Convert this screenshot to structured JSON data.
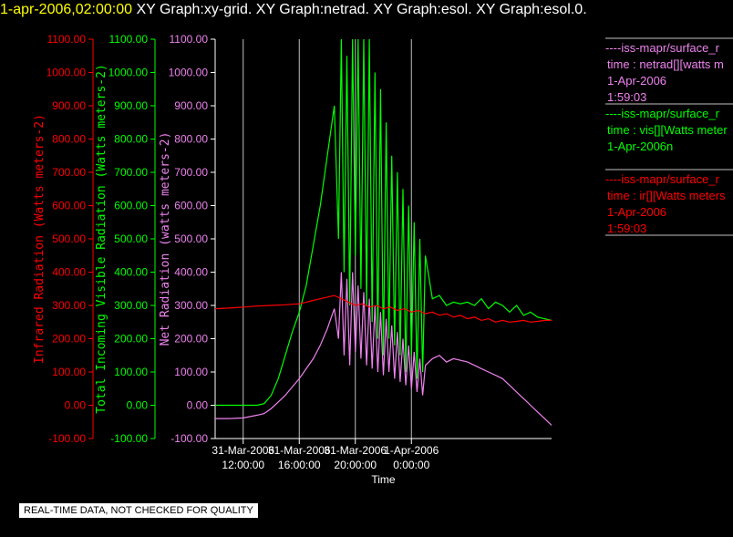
{
  "header": {
    "time_label": "1-apr-2006,02:00:00",
    "graphs_label": "XY Graph:xy-grid.  XY Graph:netrad.  XY Graph:esol.  XY Graph:esol.0."
  },
  "notice": "REAL-TIME DATA, NOT CHECKED FOR QUALITY",
  "colors": {
    "ir": "#ff0000",
    "vis": "#00ff00",
    "net": "#ee82ee",
    "axis": "#ffffff",
    "grid": "#c0c0c0"
  },
  "chart_data": {
    "type": "line",
    "ylim": [
      -100,
      1100
    ],
    "y_ticks": [
      "1100.00",
      "1000.00",
      "900.00",
      "800.00",
      "700.00",
      "600.00",
      "500.00",
      "400.00",
      "300.00",
      "200.00",
      "100.00",
      "0.00",
      "-100.00"
    ],
    "y_tick_values": [
      1100,
      1000,
      900,
      800,
      700,
      600,
      500,
      400,
      300,
      200,
      100,
      0,
      -100
    ],
    "y_axes": [
      {
        "name": "ir",
        "label": "Infrared Radiation (Watts meters-2)"
      },
      {
        "name": "vis",
        "label": "Total Incoming Visible Radiation (Watts meters-2)"
      },
      {
        "name": "net",
        "label": "Net Radiation (watts meters-2)"
      }
    ],
    "xlabel": "Time",
    "xlim": [
      10.0,
      34.0
    ],
    "x_ticks": [
      {
        "value": 12,
        "line1": "31-Mar-2006",
        "line2": "12:00:00"
      },
      {
        "value": 16,
        "line1": "31-Mar-2006",
        "line2": "16:00:00"
      },
      {
        "value": 20,
        "line1": "31-Mar-2006",
        "line2": "20:00:00"
      },
      {
        "value": 24,
        "line1": "1-Apr-2006",
        "line2": "0:00:00"
      }
    ],
    "series": [
      {
        "key": "vis",
        "x": [
          10.0,
          11.0,
          12.0,
          13.0,
          13.5,
          14.0,
          14.5,
          15.0,
          15.5,
          16.0,
          16.5,
          17.0,
          17.5,
          18.0,
          18.5,
          18.8,
          19.0,
          19.2,
          19.4,
          19.6,
          19.8,
          20.0,
          20.2,
          20.4,
          20.6,
          20.8,
          21.0,
          21.2,
          21.4,
          21.6,
          21.8,
          22.0,
          22.2,
          22.4,
          22.6,
          22.8,
          23.0,
          23.2,
          23.4,
          23.6,
          23.8,
          24.0,
          24.2,
          24.4,
          24.6,
          24.8,
          25.0,
          25.5,
          26.0,
          26.5,
          27.0,
          27.5,
          28.0,
          28.5,
          29.0,
          29.5,
          30.0,
          30.5,
          31.0,
          31.5,
          32.0,
          32.5,
          33.0,
          33.5,
          34.0
        ],
        "y": [
          0,
          0,
          0,
          0,
          5,
          30,
          80,
          150,
          220,
          280,
          360,
          480,
          600,
          750,
          900,
          500,
          1100,
          400,
          1050,
          300,
          1100,
          450,
          1100,
          350,
          1100,
          300,
          1100,
          250,
          1000,
          200,
          950,
          150,
          850,
          200,
          750,
          180,
          700,
          150,
          650,
          100,
          600,
          150,
          550,
          80,
          500,
          100,
          450,
          320,
          330,
          300,
          310,
          305,
          310,
          300,
          320,
          290,
          310,
          300,
          280,
          300,
          270,
          280,
          265,
          260,
          255
        ]
      },
      {
        "key": "net",
        "x": [
          10.0,
          11.0,
          12.0,
          13.0,
          13.5,
          14.0,
          14.5,
          15.0,
          15.5,
          16.0,
          16.5,
          17.0,
          17.5,
          18.0,
          18.5,
          18.8,
          19.0,
          19.2,
          19.4,
          19.6,
          19.8,
          20.0,
          20.2,
          20.4,
          20.6,
          20.8,
          21.0,
          21.2,
          21.4,
          21.6,
          21.8,
          22.0,
          22.2,
          22.4,
          22.6,
          22.8,
          23.0,
          23.2,
          23.4,
          23.6,
          23.8,
          24.0,
          24.2,
          24.4,
          24.6,
          24.8,
          25.0,
          25.5,
          26.0,
          26.5,
          27.0,
          27.5,
          28.0,
          28.5,
          29.0,
          29.5,
          30.0,
          30.5,
          31.0,
          31.5,
          32.0,
          32.5,
          33.0,
          33.5,
          34.0
        ],
        "y": [
          -40,
          -40,
          -38,
          -30,
          -25,
          -10,
          10,
          30,
          55,
          80,
          110,
          140,
          180,
          230,
          290,
          200,
          400,
          150,
          380,
          120,
          400,
          160,
          360,
          140,
          340,
          120,
          320,
          110,
          300,
          100,
          280,
          90,
          260,
          100,
          240,
          80,
          220,
          70,
          200,
          60,
          180,
          50,
          160,
          40,
          140,
          30,
          120,
          140,
          150,
          130,
          140,
          135,
          130,
          120,
          110,
          100,
          90,
          80,
          60,
          40,
          20,
          0,
          -20,
          -40,
          -60
        ]
      },
      {
        "key": "ir",
        "x": [
          10.0,
          11.0,
          12.0,
          13.0,
          14.0,
          15.0,
          16.0,
          16.5,
          17.0,
          17.5,
          18.0,
          18.5,
          19.0,
          19.5,
          20.0,
          20.5,
          21.0,
          21.5,
          22.0,
          22.5,
          23.0,
          23.5,
          24.0,
          24.5,
          25.0,
          25.5,
          26.0,
          26.5,
          27.0,
          27.5,
          28.0,
          28.5,
          29.0,
          29.5,
          30.0,
          30.5,
          31.0,
          31.5,
          32.0,
          32.5,
          33.0,
          33.5,
          34.0
        ],
        "y": [
          290,
          292,
          295,
          298,
          300,
          302,
          305,
          310,
          315,
          320,
          325,
          330,
          320,
          310,
          300,
          305,
          295,
          300,
          290,
          295,
          285,
          290,
          280,
          285,
          275,
          280,
          270,
          275,
          265,
          270,
          260,
          265,
          255,
          260,
          250,
          255,
          250,
          252,
          255,
          250,
          252,
          255,
          255
        ]
      }
    ],
    "legend": [
      {
        "key": "net",
        "line1": "----iss-mapr/surface_r",
        "line2": "time : netrad[][watts m",
        "line3": "1-Apr-2006",
        "line4": "1:59:03"
      },
      {
        "key": "vis",
        "line1": "----iss-mapr/surface_r",
        "line2": "time : vis[][Watts meter",
        "line3": "1-Apr-2006n",
        "line4": ""
      },
      {
        "key": "ir",
        "line1": "----iss-mapr/surface_r",
        "line2": "time : ir[][Watts meters",
        "line3": "1-Apr-2006",
        "line4": "1:59:03"
      }
    ],
    "legend_placement": "top-right",
    "grid": true
  }
}
